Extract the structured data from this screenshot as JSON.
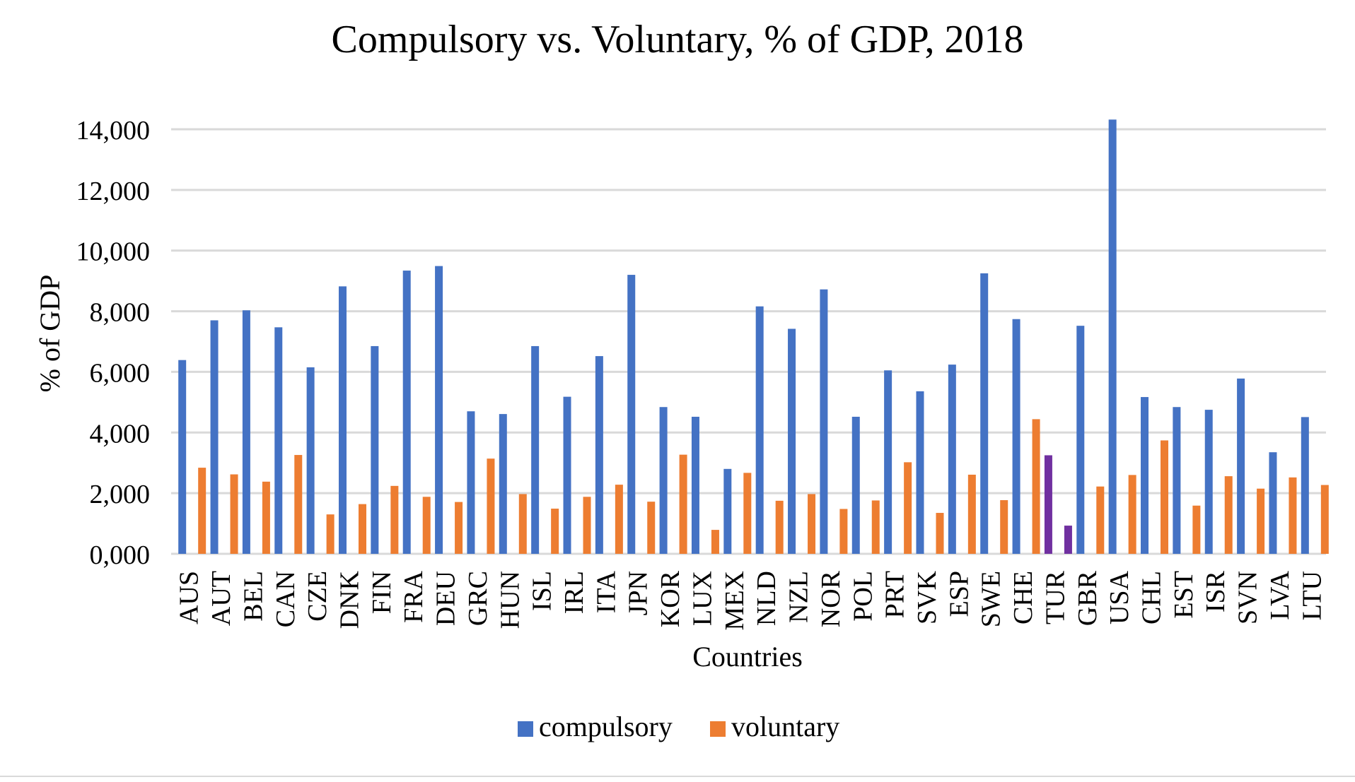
{
  "chart_data": {
    "type": "bar",
    "title": "Compulsory vs. Voluntary, % of GDP, 2018",
    "xlabel": "Countries",
    "ylabel": "% of GDP",
    "ylim": [
      0,
      14000
    ],
    "yticks": [
      0,
      2000,
      4000,
      6000,
      8000,
      10000,
      12000,
      14000
    ],
    "ytick_labels": [
      "0,000",
      "2,000",
      "4,000",
      "6,000",
      "8,000",
      "10,000",
      "12,000",
      "14,000"
    ],
    "grid": true,
    "legend_position": "bottom-center",
    "categories": [
      "AUS",
      "AUT",
      "BEL",
      "CAN",
      "CZE",
      "DNK",
      "FIN",
      "FRA",
      "DEU",
      "GRC",
      "HUN",
      "ISL",
      "IRL",
      "ITA",
      "JPN",
      "KOR",
      "LUX",
      "MEX",
      "NLD",
      "NZL",
      "NOR",
      "POL",
      "PRT",
      "SVK",
      "ESP",
      "SWE",
      "CHE",
      "TUR",
      "GBR",
      "USA",
      "CHL",
      "EST",
      "ISR",
      "SVN",
      "LVA",
      "LTU"
    ],
    "series": [
      {
        "name": "compulsory",
        "color": "#4472c4",
        "values": [
          6390,
          7700,
          8030,
          7470,
          6150,
          8820,
          6850,
          9340,
          9490,
          4700,
          4610,
          6850,
          5180,
          6520,
          9200,
          4840,
          4520,
          2800,
          8160,
          7420,
          8720,
          4520,
          6050,
          5360,
          6240,
          9250,
          7740,
          3250,
          7520,
          14320,
          5170,
          4840,
          4750,
          5780,
          3350,
          4510
        ]
      },
      {
        "name": "voluntary",
        "color": "#ed7d31",
        "values": [
          2840,
          2620,
          2380,
          3260,
          1300,
          1640,
          2240,
          1880,
          1710,
          3140,
          1970,
          1490,
          1880,
          2280,
          1720,
          3270,
          790,
          2670,
          1750,
          1970,
          1480,
          1760,
          3020,
          1350,
          2610,
          1770,
          4440,
          930,
          2220,
          2600,
          3740,
          1590,
          2560,
          2150,
          2520,
          2270
        ]
      }
    ],
    "highlight": {
      "category": "TUR",
      "color": "#7030a0"
    }
  }
}
